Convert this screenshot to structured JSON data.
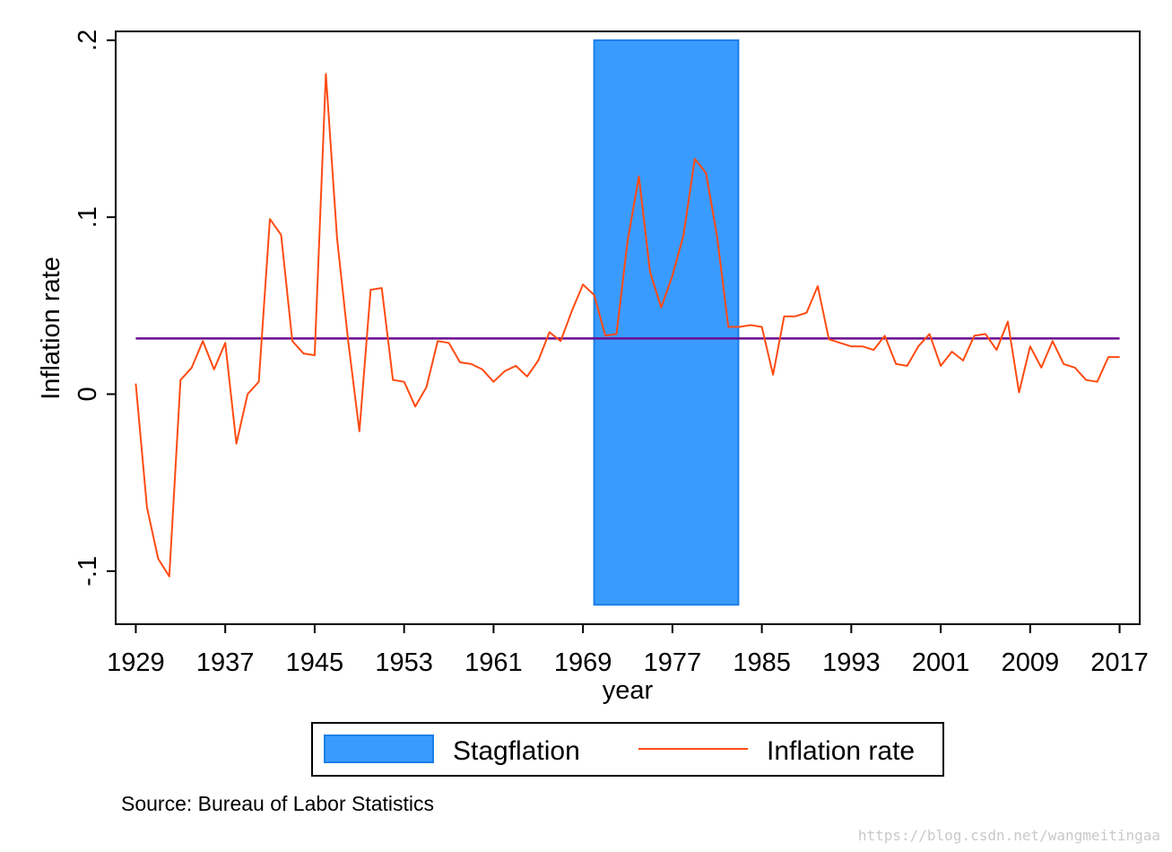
{
  "chart_data": {
    "type": "line",
    "ylabel": "Inflation rate",
    "xlabel": "year",
    "ylim": [
      -0.13,
      0.205
    ],
    "xlim": [
      1927.2,
      2018.8
    ],
    "x_ticks": [
      1929,
      1937,
      1945,
      1953,
      1961,
      1969,
      1977,
      1985,
      1993,
      2001,
      2009,
      2017
    ],
    "y_ticks": [
      {
        "value": -0.1,
        "label": "-.1"
      },
      {
        "value": 0,
        "label": "0"
      },
      {
        "value": 0.1,
        "label": ".1"
      },
      {
        "value": 0.2,
        "label": ".2"
      }
    ],
    "shaded_region": {
      "name": "Stagflation",
      "x_start": 1970,
      "x_end": 1982.9,
      "y_start": -0.119,
      "y_end": 0.2,
      "color": "#3a9bff",
      "edge_color": "#1a7fe6"
    },
    "mean_line": {
      "y": 0.0315,
      "color": "#6a0d8f"
    },
    "series": [
      {
        "name": "Inflation rate",
        "color": "#ff4b12",
        "x": [
          1929,
          1930,
          1931,
          1932,
          1933,
          1934,
          1935,
          1936,
          1937,
          1938,
          1939,
          1940,
          1941,
          1942,
          1943,
          1944,
          1945,
          1946,
          1947,
          1948,
          1949,
          1950,
          1951,
          1952,
          1953,
          1954,
          1955,
          1956,
          1957,
          1958,
          1959,
          1960,
          1961,
          1962,
          1963,
          1964,
          1965,
          1966,
          1967,
          1968,
          1969,
          1970,
          1971,
          1972,
          1973,
          1974,
          1975,
          1976,
          1977,
          1978,
          1979,
          1980,
          1981,
          1982,
          1983,
          1984,
          1985,
          1986,
          1987,
          1988,
          1989,
          1990,
          1991,
          1992,
          1993,
          1994,
          1995,
          1996,
          1997,
          1998,
          1999,
          2000,
          2001,
          2002,
          2003,
          2004,
          2005,
          2006,
          2007,
          2008,
          2009,
          2010,
          2011,
          2012,
          2013,
          2014,
          2015,
          2016,
          2017
        ],
        "y": [
          0.006,
          -0.064,
          -0.093,
          -0.103,
          0.008,
          0.015,
          0.03,
          0.014,
          0.029,
          -0.028,
          0.0,
          0.007,
          0.099,
          0.09,
          0.03,
          0.023,
          0.022,
          0.181,
          0.088,
          0.03,
          -0.021,
          0.059,
          0.06,
          0.008,
          0.007,
          -0.007,
          0.004,
          0.03,
          0.029,
          0.018,
          0.017,
          0.014,
          0.007,
          0.013,
          0.016,
          0.01,
          0.019,
          0.035,
          0.03,
          0.047,
          0.062,
          0.056,
          0.033,
          0.034,
          0.087,
          0.123,
          0.069,
          0.049,
          0.067,
          0.09,
          0.133,
          0.125,
          0.089,
          0.038,
          0.038,
          0.039,
          0.038,
          0.011,
          0.044,
          0.044,
          0.046,
          0.061,
          0.031,
          0.029,
          0.027,
          0.027,
          0.025,
          0.033,
          0.017,
          0.016,
          0.027,
          0.034,
          0.016,
          0.024,
          0.019,
          0.033,
          0.034,
          0.025,
          0.041,
          0.001,
          0.027,
          0.015,
          0.03,
          0.017,
          0.015,
          0.008,
          0.007,
          0.021,
          0.021
        ]
      }
    ],
    "legend": {
      "placement": "bottom",
      "entries": [
        {
          "label": "Stagflation",
          "kind": "area"
        },
        {
          "label": "Inflation rate",
          "kind": "line"
        }
      ]
    },
    "note": "Source:  Bureau of Labor Statistics",
    "grid": false
  },
  "watermark": "https://blog.csdn.net/wangmeitingaa"
}
